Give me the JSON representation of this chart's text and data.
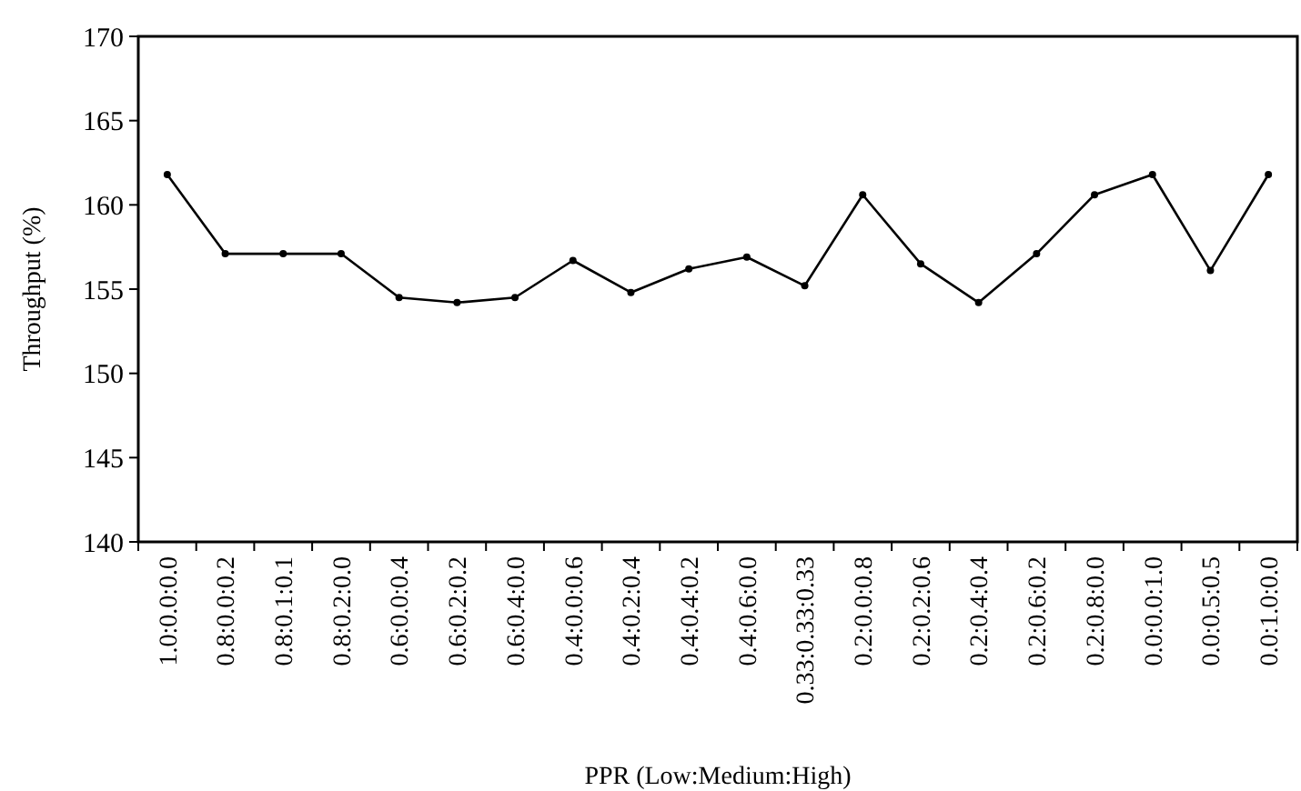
{
  "chart_data": {
    "type": "line",
    "xlabel": "PPR (Low:Medium:High)",
    "ylabel": "Throughput (%)",
    "categories": [
      "1.0:0.0:0.0",
      "0.8:0.0:0.2",
      "0.8:0.1:0.1",
      "0.8:0.2:0.0",
      "0.6:0.0:0.4",
      "0.6:0.2:0.2",
      "0.6:0.4:0.0",
      "0.4:0.0:0.6",
      "0.4:0.2:0.4",
      "0.4:0.4:0.2",
      "0.4:0.6:0.0",
      "0.33:0.33:0.33",
      "0.2:0.0:0.8",
      "0.2:0.2:0.6",
      "0.2:0.4:0.4",
      "0.2:0.6:0.2",
      "0.2:0.8:0.0",
      "0.0:0.0:1.0",
      "0.0:0.5:0.5",
      "0.0:1.0:0.0"
    ],
    "series": [
      {
        "color": "#000000",
        "values": [
          161.8,
          157.1,
          157.1,
          157.1,
          154.5,
          154.2,
          154.5,
          156.7,
          154.8,
          156.2,
          156.9,
          155.2,
          160.6,
          156.5,
          154.2,
          157.1,
          160.6,
          161.8,
          156.1,
          161.8
        ]
      }
    ],
    "ylim": [
      140,
      170
    ],
    "yticks": [
      140,
      145,
      150,
      155,
      160,
      165,
      170
    ],
    "grid": false,
    "marker": "circle",
    "line_style": "solid"
  }
}
